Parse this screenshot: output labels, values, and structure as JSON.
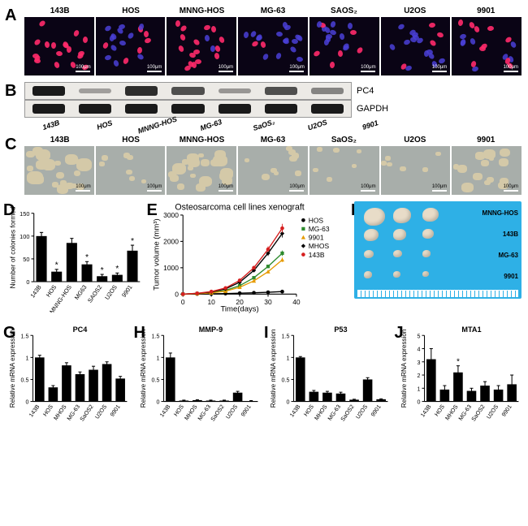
{
  "cell_lines": [
    "143B",
    "HOS",
    "MNNG-HOS",
    "MG-63",
    "SAOS₂",
    "U2OS",
    "9901"
  ],
  "panelA": {
    "label": "A",
    "scale_text": "100μm",
    "bg": "#0a0415",
    "red_intensity": [
      1.0,
      0.25,
      0.8,
      0.15,
      0.3,
      0.2,
      0.35
    ],
    "blue": "#4a3fd6",
    "red": "#ff2a6a"
  },
  "panelB": {
    "label": "B",
    "rows": [
      {
        "name": "PC4",
        "bg": "#eceae6",
        "band_color": "#1a1a1a",
        "intensities": [
          1.0,
          0.25,
          0.9,
          0.7,
          0.3,
          0.7,
          0.4
        ]
      },
      {
        "name": "GAPDH",
        "bg": "#eceae6",
        "band_color": "#1a1a1a",
        "intensities": [
          1.0,
          1.0,
          1.0,
          1.0,
          1.0,
          1.0,
          1.0
        ]
      }
    ],
    "xlabels": [
      "143B",
      "HOS",
      "MNNG-HOS",
      "MG-63",
      "SaOS₂",
      "U2OS",
      "9901"
    ]
  },
  "panelC": {
    "label": "C",
    "scale_text": "100μm",
    "labels": [
      "143B",
      "HOS",
      "MNNG-HOS",
      "MG-63",
      "SaOS₂",
      "U2OS",
      "9901"
    ],
    "bg": "#a8aeaa",
    "blob": "#d4c9a8",
    "density": [
      1.0,
      0.2,
      0.9,
      0.35,
      0.15,
      0.15,
      0.7
    ]
  },
  "panelD": {
    "label": "D",
    "type": "bar",
    "title": "",
    "ylabel": "Number of colonies formed",
    "categories": [
      "143B",
      "HOS",
      "MNNG-HOS",
      "MG63",
      "SAOS2",
      "U2OS",
      "9901"
    ],
    "values": [
      100,
      22,
      85,
      38,
      12,
      15,
      68
    ],
    "errors": [
      8,
      5,
      10,
      6,
      4,
      4,
      12
    ],
    "sig": [
      false,
      true,
      false,
      true,
      true,
      true,
      true
    ],
    "ylim": [
      0,
      150
    ],
    "yticks": [
      0,
      50,
      100,
      150
    ],
    "bar_color": "#000000",
    "bg": "#ffffff",
    "axis_color": "#000000",
    "label_fontsize": 8,
    "tick_fontsize": 7
  },
  "panelE": {
    "label": "E",
    "type": "line",
    "title": "Osteosarcoma cell lines xenograft",
    "xlabel": "Time(days)",
    "ylabel": "Tumor volume (mm³)",
    "xlim": [
      0,
      40
    ],
    "xticks": [
      0,
      10,
      20,
      30,
      40
    ],
    "ylim": [
      0,
      3000
    ],
    "yticks": [
      0,
      1000,
      2000,
      3000
    ],
    "series": [
      {
        "name": "HOS",
        "color": "#000000",
        "marker": "circle",
        "y": [
          0,
          5,
          10,
          20,
          35,
          50,
          70,
          95
        ]
      },
      {
        "name": "MG-63",
        "color": "#2e8b2e",
        "marker": "square",
        "y": [
          0,
          20,
          60,
          140,
          320,
          620,
          1050,
          1550
        ]
      },
      {
        "name": "9901",
        "color": "#e69b00",
        "marker": "triangle",
        "y": [
          0,
          15,
          45,
          110,
          260,
          500,
          850,
          1300
        ]
      },
      {
        "name": "MHOS",
        "color": "#000000",
        "marker": "diamond",
        "y": [
          0,
          25,
          80,
          200,
          450,
          900,
          1550,
          2300
        ]
      },
      {
        "name": "143B",
        "color": "#d62020",
        "marker": "circle",
        "y": [
          0,
          30,
          95,
          230,
          520,
          1000,
          1700,
          2500
        ]
      }
    ],
    "x": [
      0,
      5,
      10,
      15,
      20,
      25,
      30,
      35
    ],
    "err": 100,
    "title_fontsize": 10,
    "label_fontsize": 9,
    "tick_fontsize": 8,
    "legend_fontsize": 8
  },
  "panelF": {
    "label": "F",
    "bg": "#2eb0e6",
    "rows": [
      {
        "label": "MNNG-HOS",
        "sizes": [
          26,
          22,
          20
        ]
      },
      {
        "label": "143B",
        "sizes": [
          18,
          16,
          14
        ]
      },
      {
        "label": "MG-63",
        "sizes": [
          12,
          11,
          10
        ]
      },
      {
        "label": "9901",
        "sizes": [
          10,
          9,
          8
        ]
      }
    ],
    "tumor_color": "#e8dcc8"
  },
  "panelG": {
    "label": "G",
    "title": "PC4",
    "ylabel": "Relative mRNA expression",
    "categories": [
      "143B",
      "HOS",
      "MHOS",
      "MG-63",
      "SaOS2",
      "U2OS",
      "9901"
    ],
    "values": [
      1.0,
      0.32,
      0.82,
      0.62,
      0.72,
      0.85,
      0.52
    ],
    "errors": [
      0.05,
      0.04,
      0.06,
      0.05,
      0.08,
      0.05,
      0.05
    ],
    "ylim": [
      0,
      1.5
    ],
    "yticks": [
      0.0,
      0.5,
      1.0,
      1.5
    ],
    "bar_color": "#000000"
  },
  "panelH": {
    "label": "H",
    "title": "MMP-9",
    "ylabel": "Relative mRNA expression",
    "categories": [
      "143B",
      "HOS",
      "MHOS",
      "MG-63",
      "SaOS2",
      "U2OS",
      "9901"
    ],
    "values": [
      1.0,
      0.02,
      0.03,
      0.02,
      0.02,
      0.2,
      0.01
    ],
    "errors": [
      0.1,
      0.01,
      0.01,
      0.01,
      0.01,
      0.03,
      0.01
    ],
    "ylim": [
      0,
      1.5
    ],
    "yticks": [
      0.0,
      0.5,
      1.0,
      1.5
    ],
    "bar_color": "#000000"
  },
  "panelI": {
    "label": "I",
    "title": "P53",
    "ylabel": "Relative mRNA expression",
    "categories": [
      "143B",
      "HOS",
      "MHOS",
      "MG-63",
      "SaOS2",
      "U2OS",
      "9901"
    ],
    "values": [
      1.0,
      0.22,
      0.2,
      0.18,
      0.04,
      0.5,
      0.05
    ],
    "errors": [
      0.02,
      0.03,
      0.03,
      0.03,
      0.01,
      0.04,
      0.01
    ],
    "ylim": [
      0,
      1.5
    ],
    "yticks": [
      0.0,
      0.5,
      1.0,
      1.5
    ],
    "bar_color": "#000000"
  },
  "panelJ": {
    "label": "J",
    "title": "MTA1",
    "ylabel": "Relative mRNA expression",
    "categories": [
      "143B",
      "HOS",
      "MHOS",
      "MG-63",
      "SaOS2",
      "U2OS",
      "9901"
    ],
    "values": [
      3.2,
      0.9,
      2.2,
      0.8,
      1.2,
      0.9,
      1.3
    ],
    "errors": [
      0.8,
      0.3,
      0.5,
      0.2,
      0.3,
      0.3,
      0.7
    ],
    "sig": [
      false,
      false,
      true,
      false,
      false,
      false,
      false
    ],
    "ylim": [
      0,
      5
    ],
    "yticks": [
      0,
      1,
      2,
      3,
      4,
      5
    ],
    "bar_color": "#000000"
  }
}
